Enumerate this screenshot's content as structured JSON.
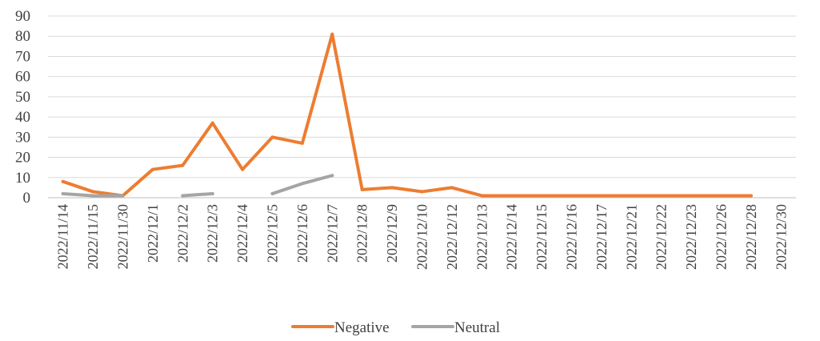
{
  "chart_data": {
    "type": "line",
    "title": "",
    "xlabel": "",
    "ylabel": "",
    "ylim": [
      0,
      90
    ],
    "yticks": [
      0,
      10,
      20,
      30,
      40,
      50,
      60,
      70,
      80,
      90
    ],
    "grid": true,
    "legend_position": "bottom",
    "categories": [
      "2022/11/14",
      "2022/11/15",
      "2022/11/30",
      "2022/12/1",
      "2022/12/2",
      "2022/12/3",
      "2022/12/4",
      "2022/12/5",
      "2022/12/6",
      "2022/12/7",
      "2022/12/8",
      "2022/12/9",
      "2022/12/10",
      "2022/12/12",
      "2022/12/13",
      "2022/12/14",
      "2022/12/15",
      "2022/12/16",
      "2022/12/17",
      "2022/12/21",
      "2022/12/22",
      "2022/12/23",
      "2022/12/26",
      "2022/12/28",
      "2022/12/30"
    ],
    "series": [
      {
        "name": "Negative",
        "color": "#ed7d31",
        "values": [
          8,
          3,
          1,
          14,
          16,
          37,
          14,
          30,
          27,
          81,
          4,
          5,
          3,
          5,
          1,
          1,
          1,
          1,
          1,
          1,
          1,
          1,
          1,
          1,
          null
        ]
      },
      {
        "name": "Neutral",
        "color": "#a5a5a5",
        "values": [
          2,
          1,
          1,
          null,
          1,
          2,
          null,
          2,
          7,
          11,
          null,
          null,
          null,
          null,
          null,
          null,
          null,
          null,
          null,
          null,
          null,
          null,
          null,
          null,
          null
        ]
      }
    ]
  }
}
